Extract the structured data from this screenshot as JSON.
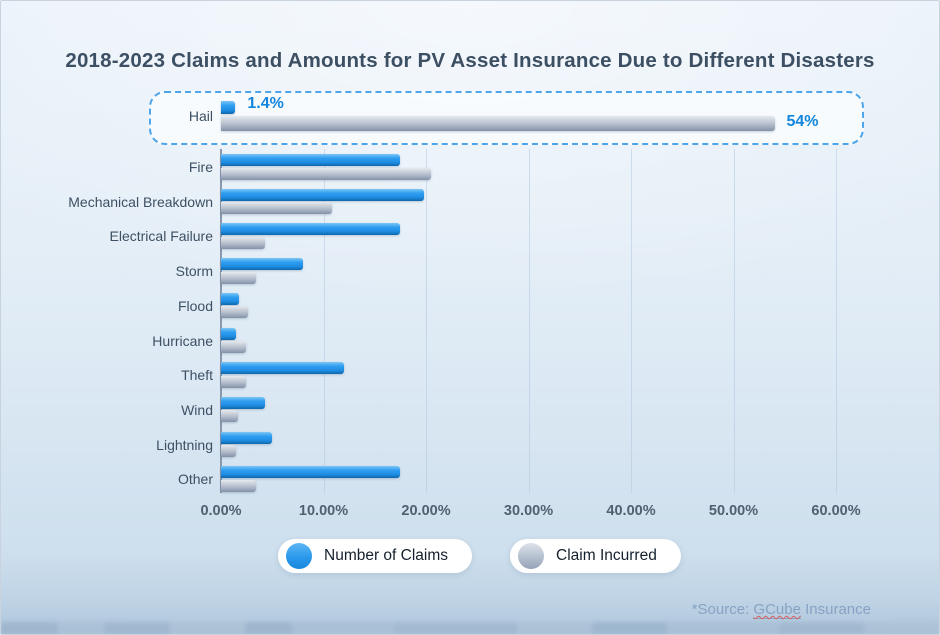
{
  "title": "2018-2023 Claims and Amounts for PV Asset Insurance Due to Different Disasters",
  "chart_data": {
    "type": "bar",
    "orientation": "horizontal",
    "title": "2018-2023 Claims and Amounts for PV Asset Insurance Due to Different Disasters",
    "categories": [
      "Hail",
      "Fire",
      "Mechanical Breakdown",
      "Electrical Failure",
      "Storm",
      "Flood",
      "Hurricane",
      "Theft",
      "Wind",
      "Lightning",
      "Other"
    ],
    "series": [
      {
        "name": "Number of Claims",
        "color": "#2196ea",
        "values": [
          1.4,
          17.5,
          19.8,
          17.5,
          8.0,
          1.8,
          1.5,
          12.0,
          4.3,
          5.0,
          17.5
        ]
      },
      {
        "name": "Claim Incurred",
        "color": "#9aa6ba",
        "values": [
          54,
          20.5,
          10.8,
          4.3,
          3.4,
          2.6,
          2.4,
          2.4,
          1.7,
          1.5,
          3.4
        ]
      }
    ],
    "x_axis": {
      "tick_labels": [
        "0.00%",
        "10.00%",
        "20.00%",
        "30.00%",
        "40.00%",
        "50.00%",
        "60.00%"
      ],
      "min": 0,
      "max": 60,
      "grid": true
    },
    "highlight": {
      "category": "Hail",
      "labels": {
        "number_of_claims": "1.4%",
        "claim_incurred": "54%"
      }
    },
    "legend": {
      "position": "bottom",
      "items": [
        "Number of Claims",
        "Claim Incurred"
      ]
    }
  },
  "source": {
    "prefix": "*Source: ",
    "link": "GCube",
    "suffix": " Insurance"
  },
  "colors": {
    "accent_blue": "#2196ea",
    "bar_gray": "#9aa6ba",
    "value_label_blue": "#1285dc",
    "highlight_border": "#4fa5e9",
    "title_text": "#3c4f63",
    "source_text": "#87a3c3"
  }
}
